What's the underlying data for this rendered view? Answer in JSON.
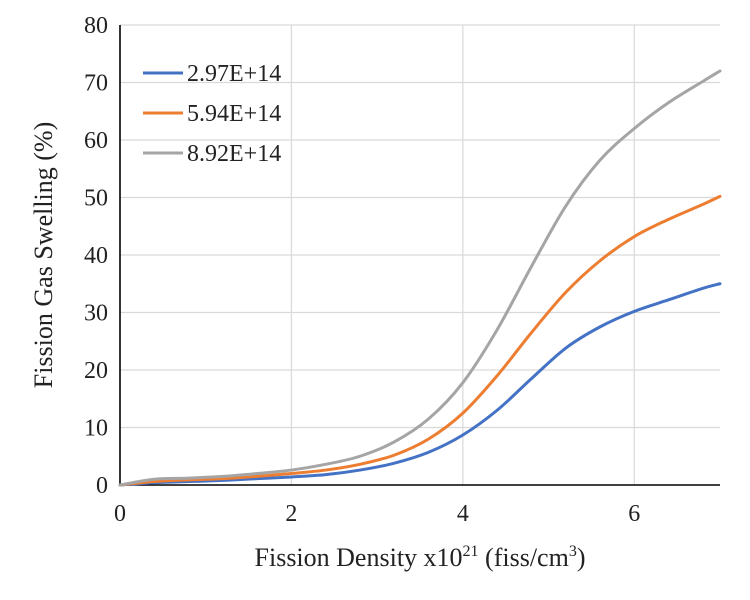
{
  "chart_data": {
    "type": "line",
    "title": "",
    "xlabel": {
      "text": "Fission Density x10",
      "superscript": "21",
      "unit_text": " (fiss/cm",
      "unit_superscript": "3",
      "unit_close": ")"
    },
    "ylabel": "Fission Gas Swelling (%)",
    "xlim": [
      0,
      7
    ],
    "ylim": [
      0,
      80
    ],
    "xticks": [
      0,
      2,
      4,
      6
    ],
    "yticks": [
      0,
      10,
      20,
      30,
      40,
      50,
      60,
      70,
      80
    ],
    "grid": true,
    "legend_position": "top-left",
    "series": [
      {
        "name": "2.97E+14",
        "color": "#4472C4",
        "x": [
          0,
          0.4,
          0.8,
          1.2,
          1.6,
          2.0,
          2.4,
          2.8,
          3.2,
          3.6,
          4.0,
          4.4,
          4.8,
          5.2,
          5.6,
          6.0,
          6.4,
          6.8,
          7.0
        ],
        "y": [
          0,
          0.4,
          0.6,
          0.8,
          1.1,
          1.4,
          1.8,
          2.6,
          3.8,
          5.7,
          8.7,
          13.0,
          18.5,
          23.8,
          27.5,
          30.2,
          32.2,
          34.2,
          35.0
        ]
      },
      {
        "name": "5.94E+14",
        "color": "#ED7D31",
        "x": [
          0,
          0.4,
          0.8,
          1.2,
          1.6,
          2.0,
          2.4,
          2.8,
          3.2,
          3.6,
          4.0,
          4.4,
          4.8,
          5.2,
          5.6,
          6.0,
          6.4,
          6.8,
          7.0
        ],
        "y": [
          0,
          0.6,
          0.9,
          1.1,
          1.5,
          2.0,
          2.6,
          3.6,
          5.2,
          8.0,
          12.5,
          19.0,
          26.5,
          33.5,
          39.0,
          43.2,
          46.2,
          48.8,
          50.2
        ]
      },
      {
        "name": "8.92E+14",
        "color": "#A5A5A5",
        "x": [
          0,
          0.4,
          0.8,
          1.2,
          1.6,
          2.0,
          2.4,
          2.8,
          3.2,
          3.6,
          4.0,
          4.4,
          4.8,
          5.2,
          5.6,
          6.0,
          6.4,
          6.8,
          7.0
        ],
        "y": [
          0,
          1.0,
          1.2,
          1.5,
          2.0,
          2.6,
          3.6,
          5.0,
          7.5,
          11.5,
          17.8,
          27.0,
          38.0,
          48.5,
          56.5,
          62.0,
          66.5,
          70.2,
          72.0
        ]
      }
    ]
  }
}
